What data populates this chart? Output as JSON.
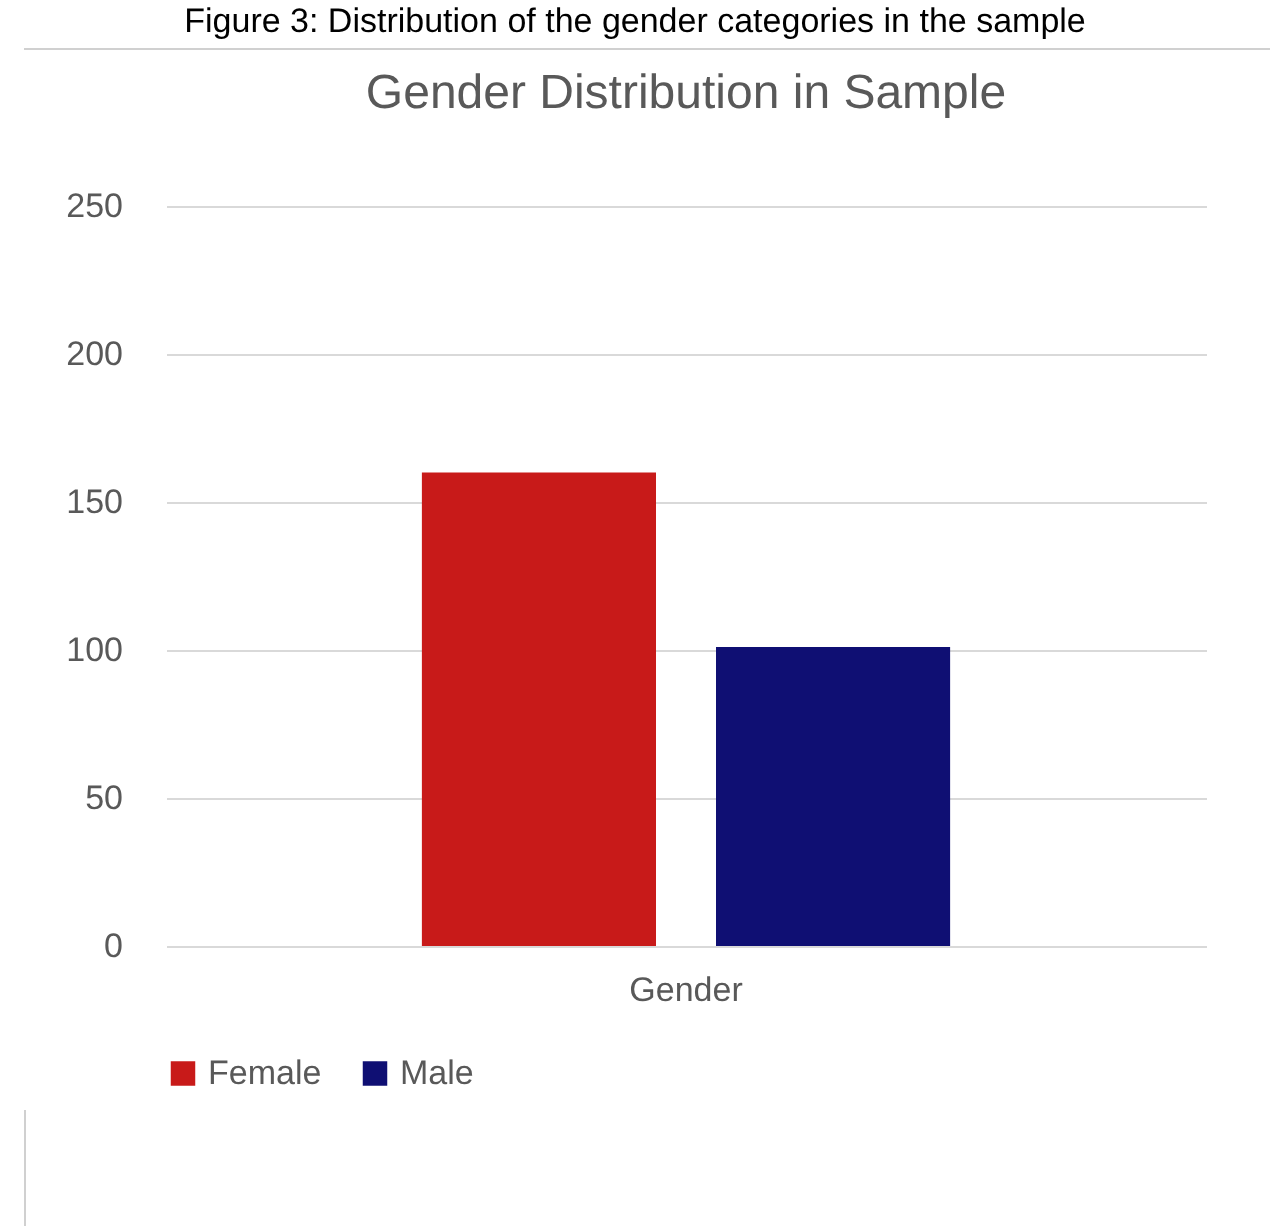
{
  "chart_data": {
    "type": "bar",
    "title": "Gender Distribution in Sample",
    "annotations": [
      "Figure 3: Distribution of the gender categories in the sample"
    ],
    "categories": [
      "Gender"
    ],
    "series": [
      {
        "name": "Female",
        "color": "#c81a19",
        "values": [
          160
        ]
      },
      {
        "name": "Male",
        "color": "#0f0f73",
        "values": [
          101
        ]
      }
    ],
    "ylim": [
      0,
      250
    ],
    "yticks": [
      0,
      50,
      100,
      150,
      200,
      250
    ],
    "grid": "y",
    "legend": "bottom"
  }
}
